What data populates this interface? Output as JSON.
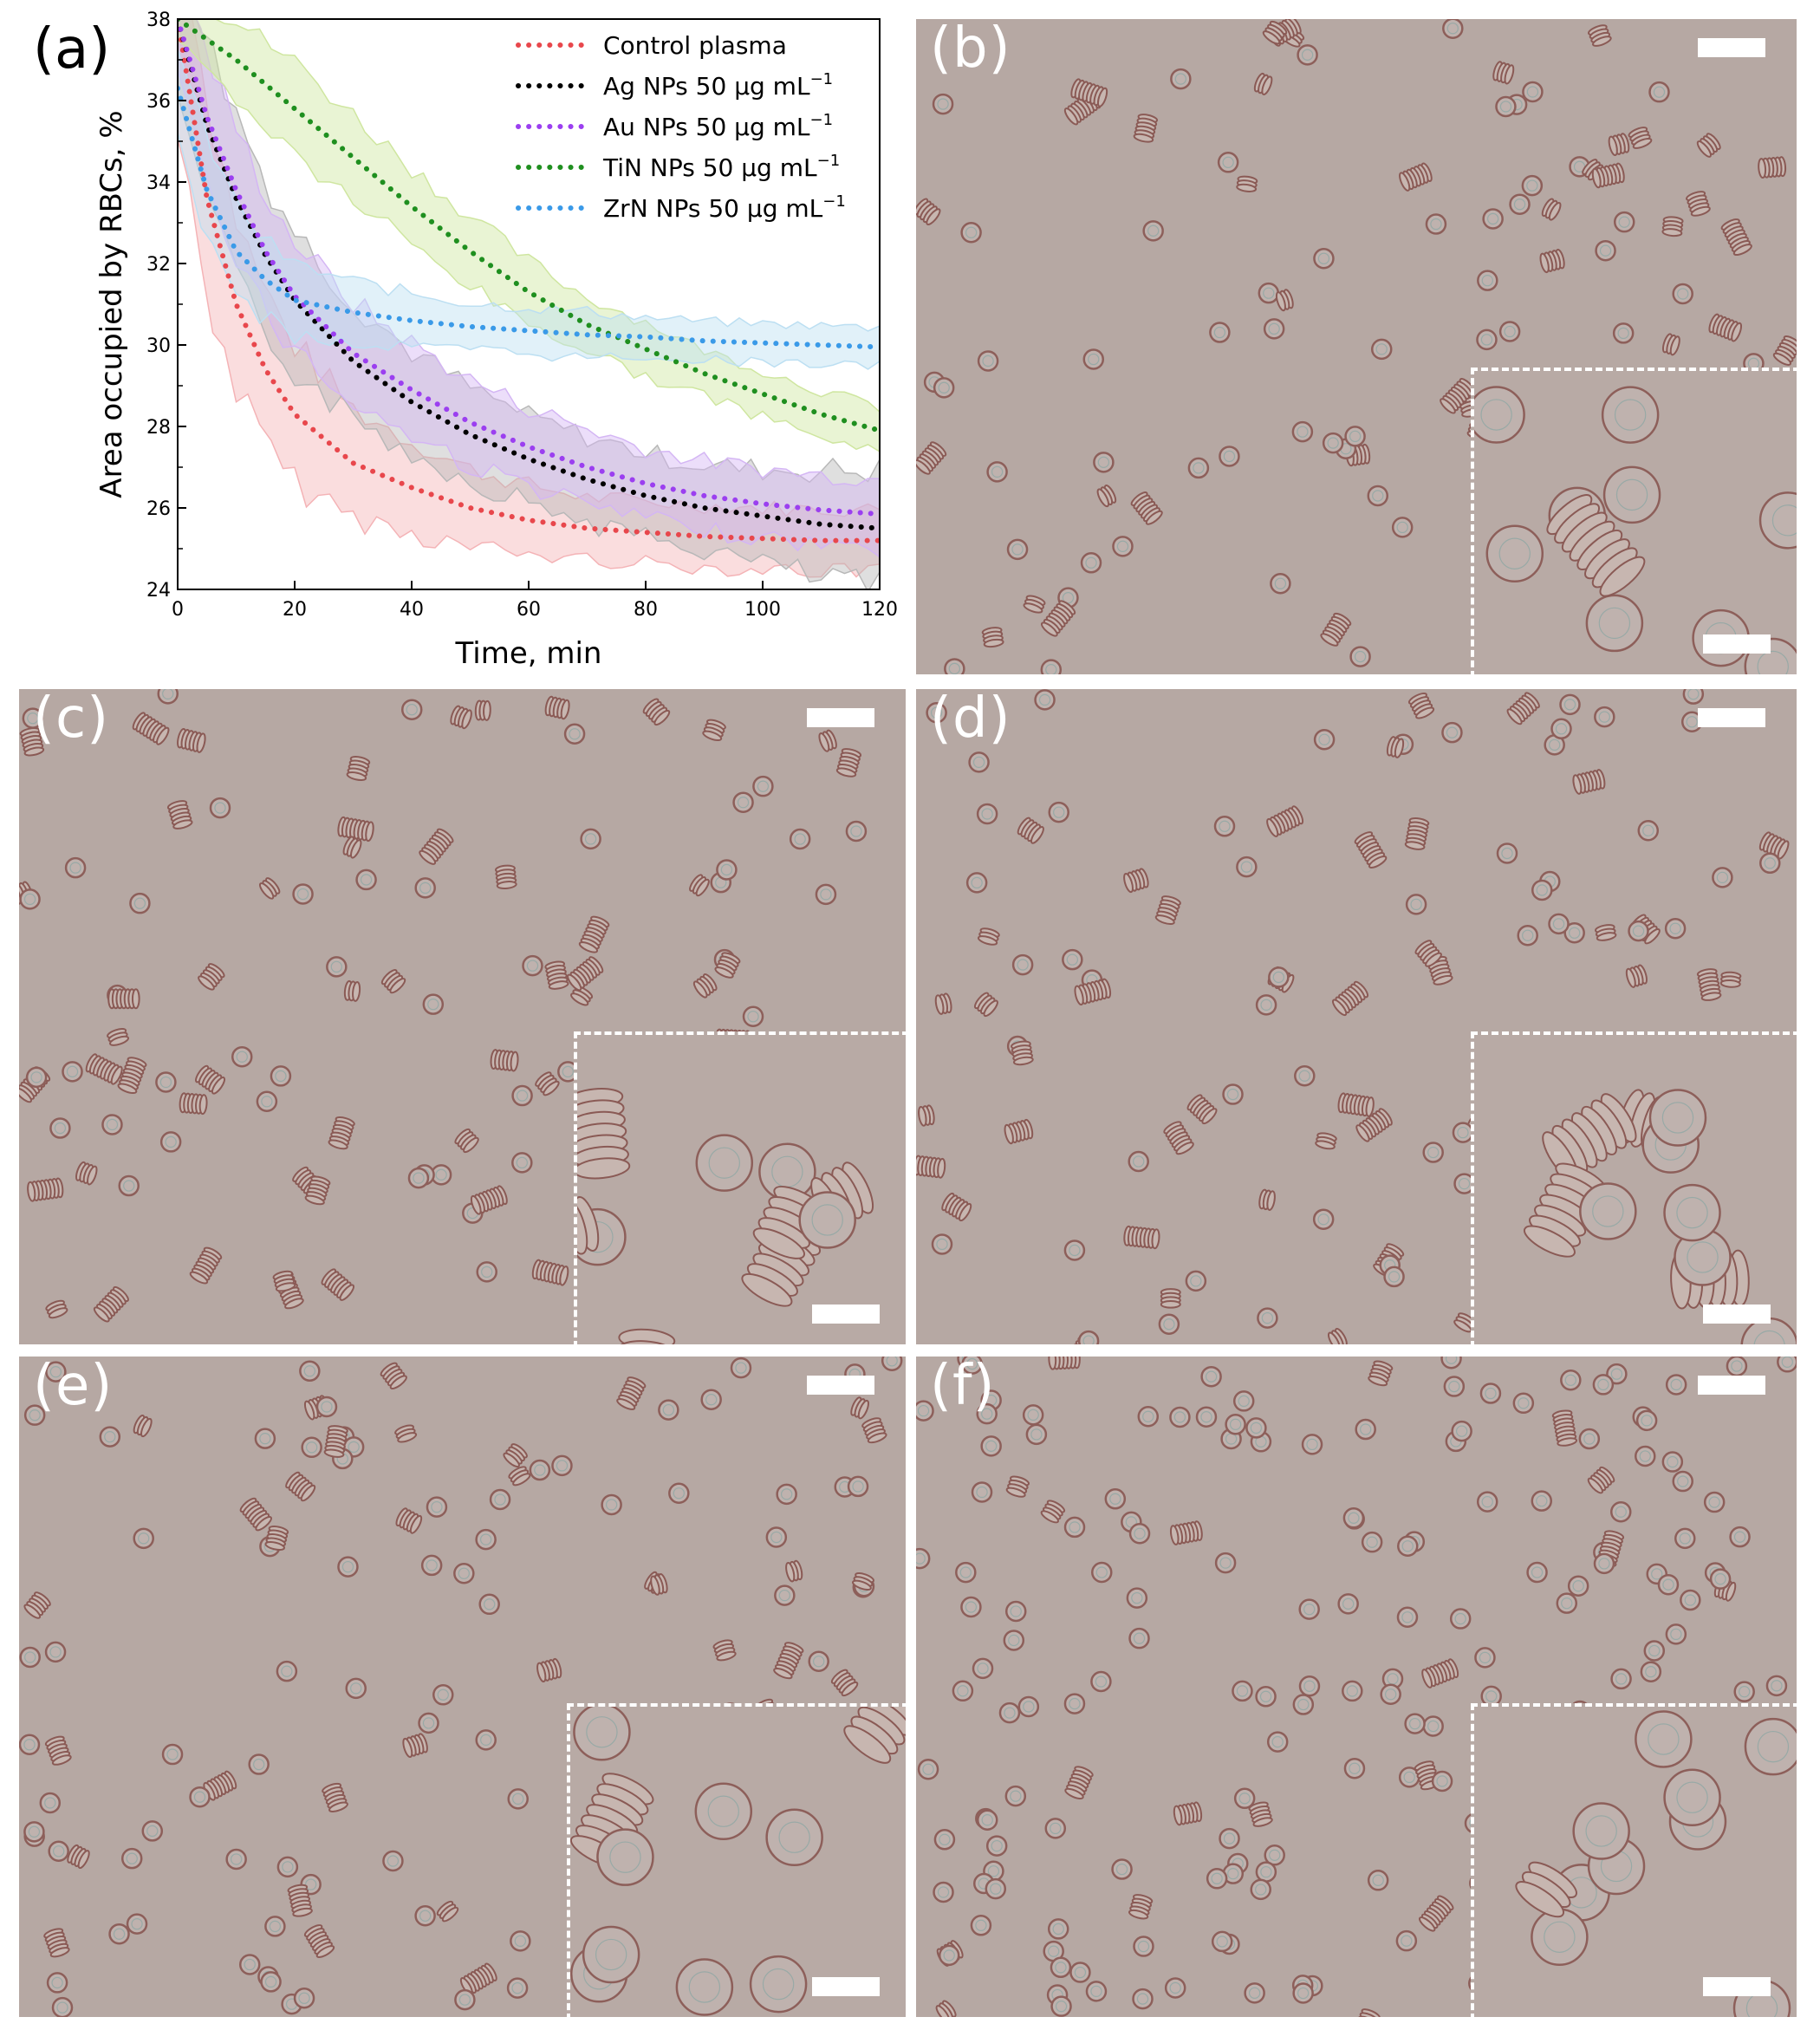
{
  "panel_a": {
    "label": "(a)",
    "chart_data": {
      "type": "line",
      "xlabel": "Time, min",
      "ylabel": "Area occupied by RBCs, %",
      "xlim": [
        0,
        120
      ],
      "ylim": [
        24,
        38
      ],
      "xticks": [
        0,
        20,
        40,
        60,
        80,
        100,
        120
      ],
      "yticks": [
        24,
        26,
        28,
        30,
        32,
        34,
        36,
        38
      ],
      "legend_position": "top-right",
      "grid": false,
      "series": [
        {
          "name": "Control plasma",
          "unit": "",
          "color": "#e8474c",
          "band_color": "#f4b3b6",
          "x": [
            0,
            5,
            10,
            15,
            20,
            30,
            40,
            50,
            60,
            70,
            80,
            90,
            100,
            110,
            120
          ],
          "y": [
            38.0,
            33.6,
            31.0,
            29.4,
            28.3,
            27.1,
            26.5,
            26.0,
            25.7,
            25.5,
            25.4,
            25.3,
            25.25,
            25.2,
            25.2
          ],
          "band": [
            3.0,
            2.5,
            2.2,
            2.0,
            1.8,
            1.4,
            1.2,
            1.0,
            0.9,
            0.8,
            0.8,
            0.8,
            0.8,
            0.8,
            0.8
          ]
        },
        {
          "name": "Ag NPs 50 ",
          "unit": "μg mL",
          "exp": "−1",
          "color": "#000000",
          "band_color": "#b8b8b8",
          "x": [
            0,
            5,
            10,
            15,
            20,
            30,
            40,
            50,
            60,
            70,
            80,
            90,
            100,
            110,
            120
          ],
          "y": [
            38.0,
            35.4,
            33.6,
            32.2,
            31.1,
            29.6,
            28.6,
            27.8,
            27.2,
            26.7,
            26.3,
            26.0,
            25.8,
            25.6,
            25.5
          ],
          "band": [
            2.0,
            2.2,
            2.2,
            2.0,
            1.8,
            1.5,
            1.3,
            1.2,
            1.1,
            1.1,
            1.1,
            1.1,
            1.2,
            1.4,
            1.5
          ]
        },
        {
          "name": "Au NPs 50 ",
          "unit": "μg mL",
          "exp": "−1",
          "color": "#9b3ff0",
          "band_color": "#d4b6f4",
          "x": [
            0,
            5,
            10,
            15,
            20,
            30,
            40,
            50,
            60,
            70,
            80,
            90,
            100,
            110,
            120
          ],
          "y": [
            38.0,
            35.6,
            33.8,
            32.3,
            31.2,
            29.8,
            28.9,
            28.1,
            27.5,
            27.0,
            26.6,
            26.3,
            26.1,
            25.95,
            25.85
          ],
          "band": [
            1.5,
            1.6,
            1.6,
            1.5,
            1.4,
            1.3,
            1.2,
            1.1,
            1.0,
            1.0,
            0.9,
            0.9,
            0.9,
            0.9,
            0.9
          ]
        },
        {
          "name": "TiN NPs 50 ",
          "unit": "μg mL",
          "exp": "−1",
          "color": "#1f8f1f",
          "band_color": "#cfe6a0",
          "x": [
            0,
            10,
            20,
            30,
            40,
            50,
            60,
            70,
            80,
            90,
            100,
            110,
            120
          ],
          "y": [
            38.0,
            37.0,
            35.8,
            34.6,
            33.4,
            32.3,
            31.3,
            30.5,
            29.9,
            29.3,
            28.8,
            28.3,
            27.9
          ],
          "band": [
            0.6,
            1.0,
            1.2,
            1.1,
            1.0,
            0.9,
            0.8,
            0.7,
            0.7,
            0.6,
            0.6,
            0.6,
            0.6
          ]
        },
        {
          "name": "ZrN NPs 50 ",
          "unit": "μg mL",
          "exp": "−1",
          "color": "#3a9ae8",
          "band_color": "#bcdff2",
          "x": [
            0,
            5,
            10,
            15,
            20,
            30,
            40,
            50,
            60,
            70,
            80,
            90,
            100,
            110,
            120
          ],
          "y": [
            36.3,
            33.8,
            32.3,
            31.6,
            31.1,
            30.8,
            30.6,
            30.45,
            30.35,
            30.25,
            30.2,
            30.1,
            30.05,
            30.0,
            29.95
          ],
          "band": [
            1.0,
            1.3,
            1.2,
            1.0,
            0.9,
            0.8,
            0.7,
            0.6,
            0.6,
            0.6,
            0.5,
            0.5,
            0.5,
            0.5,
            0.5
          ]
        }
      ]
    }
  },
  "panels": {
    "b": {
      "label": "(b)"
    },
    "c": {
      "label": "(c)"
    },
    "d": {
      "label": "(d)"
    },
    "e": {
      "label": "(e)"
    },
    "f": {
      "label": "(f)"
    }
  }
}
